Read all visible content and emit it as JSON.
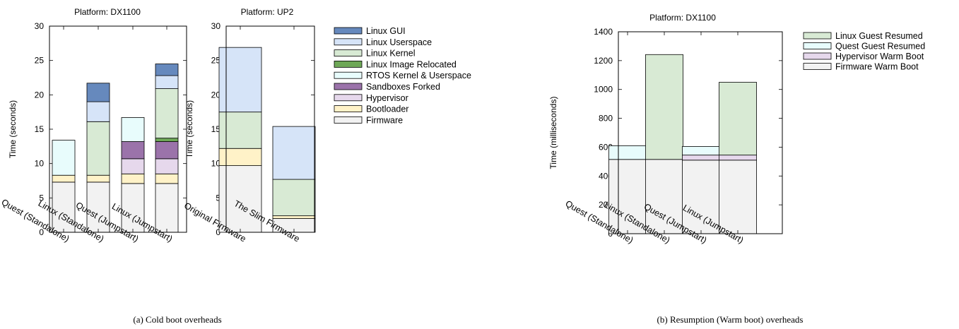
{
  "figure": {
    "caption_a": "(a) Cold boot overheads",
    "caption_b": "(b) Resumption (Warm boot) overheads"
  },
  "chart_data": [
    {
      "type": "bar",
      "stacked": true,
      "title": "Platform: DX1100",
      "ylabel": "Time (seconds)",
      "xlabel": "",
      "ylim": [
        0,
        30
      ],
      "yticks": [
        0,
        5,
        10,
        15,
        20,
        25,
        30
      ],
      "categories": [
        "Quest (Standalone)",
        "Linux (Standalone)",
        "Quest (Jumpstart)",
        "Linux (Jumpstart)"
      ],
      "legend_ref": "cold",
      "series": [
        {
          "name": "Firmware",
          "color": "#f2f2f2",
          "values": [
            7.3,
            7.3,
            7.1,
            7.1
          ]
        },
        {
          "name": "Bootloader",
          "color": "#fff2c8",
          "values": [
            1.0,
            1.0,
            1.4,
            1.4
          ]
        },
        {
          "name": "Hypervisor",
          "color": "#e6d8ec",
          "values": [
            0,
            0,
            2.2,
            2.2
          ]
        },
        {
          "name": "Sandboxes Forked",
          "color": "#9b73aa",
          "values": [
            0,
            0,
            2.5,
            2.5
          ]
        },
        {
          "name": "RTOS Kernel & Userspace",
          "color": "#e8fcfc",
          "values": [
            5.1,
            0,
            3.5,
            0
          ]
        },
        {
          "name": "Linux Image Relocated",
          "color": "#6ea857",
          "values": [
            0,
            0,
            0,
            0.5
          ]
        },
        {
          "name": "Linux Kernel",
          "color": "#d8eaD4",
          "values": [
            0,
            7.8,
            0,
            7.2
          ]
        },
        {
          "name": "Linux Userspace",
          "color": "#d6e4f8",
          "values": [
            0,
            2.9,
            0,
            1.9
          ]
        },
        {
          "name": "Linux GUI",
          "color": "#6689bd",
          "values": [
            0,
            2.7,
            0,
            1.7
          ]
        }
      ]
    },
    {
      "type": "bar",
      "stacked": true,
      "title": "Platform: UP2",
      "ylabel": "Time (seconds)",
      "xlabel": "",
      "ylim": [
        0,
        30
      ],
      "yticks": [
        0,
        5,
        10,
        15,
        20,
        25,
        30
      ],
      "categories": [
        "Original Firmware",
        "The Slim Firmware"
      ],
      "legend_ref": "cold",
      "series": [
        {
          "name": "Firmware",
          "color": "#f2f2f2",
          "values": [
            9.7,
            2.0
          ]
        },
        {
          "name": "Bootloader",
          "color": "#fff2c8",
          "values": [
            2.5,
            0.4
          ]
        },
        {
          "name": "Linux Kernel",
          "color": "#d8ead4",
          "values": [
            5.3,
            5.3
          ]
        },
        {
          "name": "Linux Userspace",
          "color": "#d6e4f8",
          "values": [
            9.4,
            7.7
          ]
        }
      ]
    },
    {
      "type": "bar",
      "stacked": true,
      "title": "Platform: DX1100",
      "ylabel": "Time (milliseconds)",
      "xlabel": "",
      "ylim": [
        0,
        1400
      ],
      "yticks": [
        0,
        200,
        400,
        600,
        800,
        1000,
        1200,
        1400
      ],
      "categories": [
        "Quest (Standalone)",
        "Linux (Standalone)",
        "Quest (Jumpstart)",
        "Linux (Jumpstart)"
      ],
      "legend_ref": "warm",
      "series": [
        {
          "name": "Firmware Warm Boot",
          "color": "#f2f2f2",
          "values": [
            515,
            515,
            510,
            510
          ]
        },
        {
          "name": "Hypervisor Warm Boot",
          "color": "#e6d8ec",
          "values": [
            0,
            0,
            35,
            35
          ]
        },
        {
          "name": "Quest Guest Resumed",
          "color": "#e8fcfc",
          "values": [
            95,
            0,
            60,
            0
          ]
        },
        {
          "name": "Linux Guest Resumed",
          "color": "#d8ead4",
          "values": [
            0,
            727,
            0,
            505
          ]
        }
      ]
    }
  ],
  "legends": {
    "cold": [
      {
        "label": "Linux GUI",
        "color": "#6689bd"
      },
      {
        "label": "Linux Userspace",
        "color": "#d6e4f8"
      },
      {
        "label": "Linux Kernel",
        "color": "#d8ead4"
      },
      {
        "label": "Linux Image Relocated",
        "color": "#6ea857"
      },
      {
        "label": "RTOS Kernel & Userspace",
        "color": "#e8fcfc"
      },
      {
        "label": "Sandboxes Forked",
        "color": "#9b73aa"
      },
      {
        "label": "Hypervisor",
        "color": "#e6d8ec"
      },
      {
        "label": "Bootloader",
        "color": "#fff2c8"
      },
      {
        "label": "Firmware",
        "color": "#f2f2f2"
      }
    ],
    "warm": [
      {
        "label": "Linux Guest Resumed",
        "color": "#d8ead4"
      },
      {
        "label": "Quest Guest Resumed",
        "color": "#e8fcfc"
      },
      {
        "label": "Hypervisor Warm Boot",
        "color": "#e6d8ec"
      },
      {
        "label": "Firmware Warm Boot",
        "color": "#f2f2f2"
      }
    ]
  }
}
